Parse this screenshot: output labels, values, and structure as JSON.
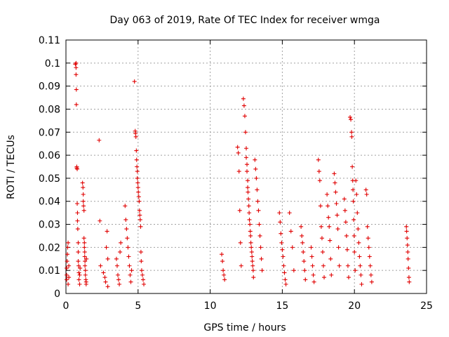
{
  "chart_data": {
    "type": "scatter",
    "title": "Day 063 of 2019, Rate Of TEC Index for receiver wmga",
    "xlabel": "GPS time / hours",
    "ylabel": "ROTI / TECUs",
    "xlim": [
      0,
      25
    ],
    "ylim": [
      0,
      0.11
    ],
    "xticks": [
      "0",
      "5",
      "10",
      "15",
      "20",
      "25"
    ],
    "yticks": [
      "0",
      "0.01",
      "0.02",
      "0.03",
      "0.04",
      "0.05",
      "0.06",
      "0.07",
      "0.08",
      "0.09",
      "0.1",
      "0.11"
    ],
    "grid": true,
    "marker": "+",
    "color": "#e00000",
    "series": [
      {
        "name": "ROTI",
        "x": [
          0.05,
          0.05,
          0.05,
          0.08,
          0.1,
          0.12,
          0.15,
          0.15,
          0.2,
          0.2,
          0.65,
          0.7,
          0.7,
          0.7,
          0.72,
          0.72,
          0.75,
          0.75,
          0.78,
          0.78,
          0.8,
          0.8,
          0.82,
          0.85,
          0.85,
          0.85,
          0.88,
          0.9,
          0.9,
          0.95,
          0.95,
          0.98,
          1.15,
          1.18,
          1.2,
          1.2,
          1.22,
          1.25,
          1.25,
          1.28,
          1.28,
          1.3,
          1.3,
          1.32,
          1.32,
          1.35,
          1.35,
          1.38,
          1.4,
          1.4,
          1.42,
          2.3,
          2.35,
          2.4,
          2.6,
          2.7,
          2.75,
          2.8,
          2.85,
          2.9,
          2.9,
          3.5,
          3.55,
          3.6,
          3.65,
          3.7,
          3.75,
          3.8,
          4.1,
          4.15,
          4.2,
          4.25,
          4.3,
          4.35,
          4.4,
          4.45,
          4.5,
          4.55,
          4.75,
          4.8,
          4.82,
          4.85,
          4.88,
          4.9,
          4.92,
          4.95,
          4.95,
          4.98,
          5.0,
          5.02,
          5.05,
          5.08,
          5.1,
          5.12,
          5.15,
          5.18,
          5.2,
          5.22,
          5.25,
          5.3,
          5.35,
          5.4,
          10.8,
          10.85,
          10.9,
          10.95,
          11.0,
          11.9,
          11.95,
          12.0,
          12.05,
          12.1,
          12.15,
          12.3,
          12.35,
          12.4,
          12.45,
          12.5,
          12.5,
          12.55,
          12.55,
          12.6,
          12.6,
          12.62,
          12.65,
          12.68,
          12.7,
          12.72,
          12.75,
          12.78,
          12.8,
          12.82,
          12.85,
          12.88,
          12.9,
          12.92,
          12.95,
          12.98,
          13.0,
          13.1,
          13.15,
          13.2,
          13.25,
          13.3,
          13.35,
          13.4,
          13.45,
          13.5,
          13.55,
          13.6,
          14.8,
          14.85,
          14.9,
          14.95,
          15.0,
          15.05,
          15.1,
          15.15,
          15.2,
          15.25,
          15.5,
          15.6,
          15.7,
          15.8,
          16.3,
          16.35,
          16.4,
          16.45,
          16.5,
          16.55,
          16.6,
          17.0,
          17.05,
          17.1,
          17.15,
          17.2,
          17.5,
          17.55,
          17.6,
          17.65,
          17.7,
          17.75,
          17.8,
          17.85,
          17.9,
          18.1,
          18.15,
          18.2,
          18.25,
          18.3,
          18.35,
          18.4,
          18.6,
          18.65,
          18.7,
          18.75,
          18.8,
          18.85,
          18.9,
          18.95,
          19.3,
          19.35,
          19.4,
          19.45,
          19.5,
          19.55,
          19.6,
          19.7,
          19.75,
          19.8,
          19.82,
          19.85,
          19.88,
          19.9,
          19.92,
          19.95,
          19.98,
          20.0,
          20.05,
          20.1,
          20.15,
          20.2,
          20.25,
          20.3,
          20.35,
          20.4,
          20.45,
          20.5,
          20.8,
          20.85,
          20.9,
          20.95,
          21.0,
          21.05,
          21.1,
          21.15,
          21.2,
          23.6,
          23.62,
          23.65,
          23.68,
          23.7,
          23.72,
          23.75,
          23.78,
          23.8
        ],
        "y": [
          0.006,
          0.008,
          0.011,
          0.014,
          0.017,
          0.02,
          0.022,
          0.004,
          0.007,
          0.012,
          0.0995,
          0.1,
          0.098,
          0.095,
          0.0885,
          0.082,
          0.055,
          0.0545,
          0.054,
          0.039,
          0.035,
          0.0315,
          0.028,
          0.022,
          0.018,
          0.014,
          0.012,
          0.009,
          0.006,
          0.004,
          0.008,
          0.011,
          0.048,
          0.046,
          0.043,
          0.04,
          0.038,
          0.036,
          0.024,
          0.022,
          0.02,
          0.018,
          0.016,
          0.014,
          0.012,
          0.01,
          0.008,
          0.006,
          0.005,
          0.004,
          0.015,
          0.0665,
          0.0315,
          0.012,
          0.009,
          0.007,
          0.005,
          0.02,
          0.027,
          0.015,
          0.003,
          0.015,
          0.012,
          0.008,
          0.006,
          0.004,
          0.018,
          0.022,
          0.038,
          0.032,
          0.028,
          0.024,
          0.02,
          0.016,
          0.012,
          0.008,
          0.005,
          0.01,
          0.092,
          0.0705,
          0.0695,
          0.068,
          0.062,
          0.058,
          0.055,
          0.053,
          0.05,
          0.048,
          0.046,
          0.044,
          0.042,
          0.04,
          0.036,
          0.034,
          0.032,
          0.029,
          0.018,
          0.014,
          0.01,
          0.008,
          0.006,
          0.004,
          0.017,
          0.014,
          0.01,
          0.008,
          0.006,
          0.0635,
          0.061,
          0.053,
          0.036,
          0.022,
          0.012,
          0.0845,
          0.0815,
          0.077,
          0.07,
          0.063,
          0.059,
          0.056,
          0.053,
          0.049,
          0.046,
          0.044,
          0.041,
          0.038,
          0.035,
          0.032,
          0.03,
          0.027,
          0.025,
          0.022,
          0.02,
          0.018,
          0.016,
          0.014,
          0.012,
          0.01,
          0.007,
          0.058,
          0.054,
          0.05,
          0.045,
          0.04,
          0.036,
          0.03,
          0.025,
          0.02,
          0.015,
          0.01,
          0.035,
          0.031,
          0.026,
          0.022,
          0.019,
          0.016,
          0.012,
          0.009,
          0.006,
          0.004,
          0.035,
          0.027,
          0.02,
          0.01,
          0.029,
          0.025,
          0.022,
          0.018,
          0.014,
          0.01,
          0.006,
          0.02,
          0.016,
          0.012,
          0.008,
          0.005,
          0.058,
          0.053,
          0.049,
          0.038,
          0.029,
          0.024,
          0.018,
          0.012,
          0.007,
          0.043,
          0.038,
          0.033,
          0.029,
          0.023,
          0.015,
          0.008,
          0.052,
          0.048,
          0.044,
          0.039,
          0.034,
          0.028,
          0.02,
          0.012,
          0.041,
          0.036,
          0.031,
          0.025,
          0.019,
          0.012,
          0.007,
          0.0765,
          0.0755,
          0.07,
          0.068,
          0.055,
          0.049,
          0.045,
          0.04,
          0.032,
          0.025,
          0.018,
          0.01,
          0.049,
          0.043,
          0.035,
          0.028,
          0.022,
          0.016,
          0.012,
          0.008,
          0.004,
          0.045,
          0.043,
          0.029,
          0.024,
          0.02,
          0.016,
          0.012,
          0.008,
          0.005,
          0.029,
          0.027,
          0.024,
          0.021,
          0.018,
          0.015,
          0.011,
          0.007,
          0.005
        ]
      }
    ]
  }
}
